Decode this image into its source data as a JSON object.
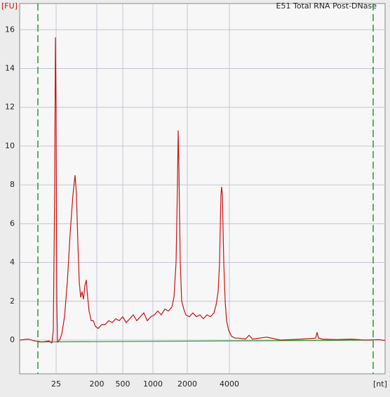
{
  "chart_data": {
    "type": "line",
    "title": "E51 Total RNA Post-DNase",
    "ylabel": "[FU]",
    "xlabel": "[nt]",
    "xlim": [
      0,
      521
    ],
    "ylim": [
      -1.74,
      17.35
    ],
    "xticks": [
      {
        "value": 52,
        "label": "25"
      },
      {
        "value": 110,
        "label": "200"
      },
      {
        "value": 147,
        "label": "500"
      },
      {
        "value": 190,
        "label": "1000"
      },
      {
        "value": 239,
        "label": "2000"
      },
      {
        "value": 299,
        "label": "4000"
      }
    ],
    "yticks": [
      0,
      2,
      4,
      6,
      8,
      10,
      12,
      14,
      16
    ],
    "grid": true,
    "marker_lines": {
      "values": [
        26,
        504
      ],
      "color": "#2a9a2a"
    },
    "baseline": {
      "x": [
        26,
        504
      ],
      "values": [
        -0.1,
        0
      ],
      "color": "#2a9a2a"
    },
    "series": [
      {
        "color": "#cc1111",
        "x": [
          0,
          12,
          22,
          32,
          42,
          46,
          48,
          50,
          51,
          52,
          53,
          54,
          57,
          60,
          64,
          68,
          72,
          76,
          79,
          81,
          83,
          85,
          87,
          89,
          91,
          93,
          95,
          97,
          99,
          102,
          105,
          108,
          112,
          117,
          122,
          127,
          132,
          137,
          142,
          147,
          152,
          157,
          162,
          167,
          172,
          177,
          182,
          187,
          192,
          197,
          202,
          207,
          212,
          217,
          220,
          223,
          225,
          226,
          227,
          229,
          231,
          234,
          237,
          242,
          247,
          252,
          257,
          262,
          267,
          272,
          277,
          280,
          283,
          285,
          287,
          288,
          289,
          291,
          293,
          295,
          298,
          302,
          307,
          312,
          322,
          327,
          332,
          352,
          372,
          402,
          422,
          424,
          426,
          432,
          452,
          472,
          492,
          512,
          521
        ],
        "values": [
          0,
          0.05,
          -0.05,
          -0.1,
          -0.05,
          -0.15,
          0.5,
          8,
          15.6,
          12,
          2,
          -0.1,
          0,
          0.3,
          1.2,
          3,
          5.5,
          7.5,
          8.5,
          7.5,
          5,
          3,
          2.2,
          2.5,
          2.1,
          2.8,
          3.1,
          2.2,
          1.5,
          1.0,
          1.0,
          0.7,
          0.6,
          0.8,
          0.8,
          1.0,
          0.9,
          1.1,
          1.0,
          1.2,
          0.9,
          1.1,
          1.3,
          1.0,
          1.2,
          1.4,
          1.0,
          1.2,
          1.3,
          1.5,
          1.3,
          1.6,
          1.5,
          1.7,
          2.2,
          4,
          8,
          10.8,
          9,
          4,
          2,
          1.6,
          1.3,
          1.2,
          1.4,
          1.2,
          1.3,
          1.1,
          1.3,
          1.2,
          1.4,
          1.8,
          2.5,
          4,
          7.5,
          7.9,
          7.5,
          4,
          2,
          1,
          0.5,
          0.2,
          0.1,
          0.1,
          0.05,
          0.25,
          0.05,
          0.15,
          0,
          0.05,
          0.1,
          0.4,
          0.1,
          0.05,
          0.02,
          0.05,
          0,
          0.02,
          -0.02
        ]
      }
    ]
  }
}
